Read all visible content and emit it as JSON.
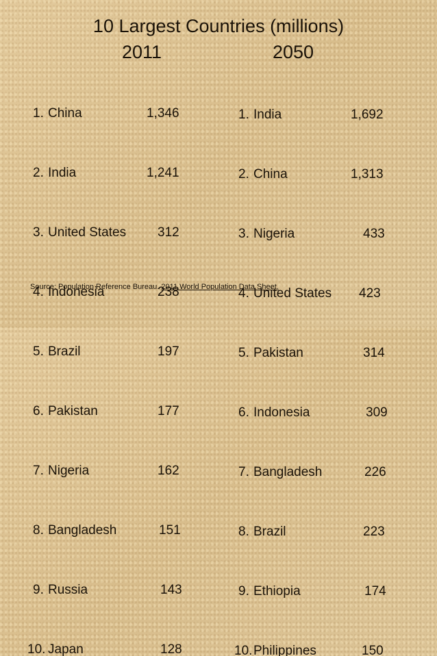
{
  "title": "10 Largest Countries (millions)",
  "year_left": "2011",
  "year_right": "2050",
  "list_2011": [
    {
      "rank": "1.",
      "country": "China",
      "value": "1,346"
    },
    {
      "rank": "2.",
      "country": "India",
      "value": "1,241"
    },
    {
      "rank": "3.",
      "country": "United States",
      "value": "312"
    },
    {
      "rank": "4.",
      "country": "Indonesia",
      "value": "238"
    },
    {
      "rank": "5.",
      "country": "Brazil",
      "value": "197"
    },
    {
      "rank": "6.",
      "country": "Pakistan",
      "value": "177"
    },
    {
      "rank": "7.",
      "country": "Nigeria",
      "value": "162"
    },
    {
      "rank": "8.",
      "country": "Bangladesh",
      "value": "151"
    },
    {
      "rank": "9.",
      "country": "Russia",
      "value": "143"
    },
    {
      "rank": "10.",
      "country": "Japan",
      "value": "128"
    }
  ],
  "list_2050": [
    {
      "rank": "1.",
      "country": "India",
      "value": "1,692"
    },
    {
      "rank": "2.",
      "country": "China",
      "value": "1,313"
    },
    {
      "rank": "3.",
      "country": "Nigeria",
      "value": "433"
    },
    {
      "rank": "4.",
      "country": "United States",
      "value": "423"
    },
    {
      "rank": "5.",
      "country": "Pakistan",
      "value": "314"
    },
    {
      "rank": "6.",
      "country": "Indonesia",
      "value": "309"
    },
    {
      "rank": "7.",
      "country": "Bangladesh",
      "value": "226"
    },
    {
      "rank": "8.",
      "country": "Brazil",
      "value": "223"
    },
    {
      "rank": "9.",
      "country": "Ethiopia",
      "value": "174"
    },
    {
      "rank": "10.",
      "country": "Philippines",
      "value": "150"
    }
  ],
  "source": {
    "prefix": "Source: Population Reference Bureau. ",
    "link": "2011 World Population Data Sheet."
  }
}
